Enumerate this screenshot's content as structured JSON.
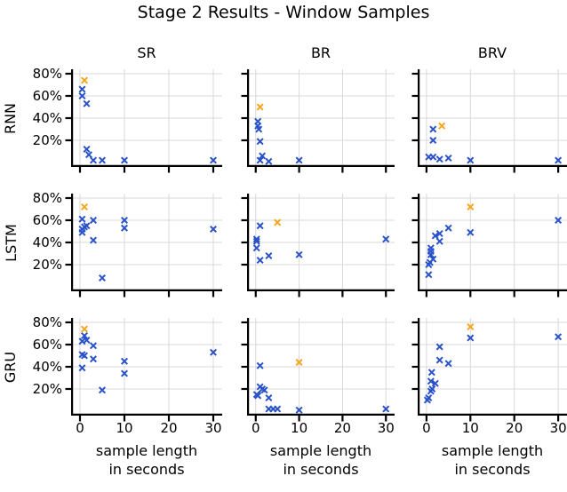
{
  "figure": {
    "title": "Stage 2 Results - Window Samples",
    "columns": [
      "SR",
      "BR",
      "BRV"
    ],
    "rows": [
      "RNN",
      "LSTM",
      "GRU"
    ],
    "xlabel_lines": [
      "sample length",
      "in seconds"
    ]
  },
  "colors": {
    "blue": "#2a52c8",
    "orange": "#f7a51b",
    "grid": "#d8d8d8",
    "spine": "#000000"
  },
  "axes": {
    "x_ticks": [
      0,
      10,
      20,
      30
    ],
    "x_tick_labels": [
      "0",
      "10",
      "20",
      "30"
    ],
    "y_ticks": [
      80,
      60,
      40,
      20
    ],
    "y_tick_labels": [
      "80%",
      "60%",
      "40%",
      "20%"
    ],
    "xlim": [
      -2,
      32
    ],
    "ylim": [
      -4,
      84
    ],
    "grid": true,
    "x_unit": "seconds",
    "y_unit": "percent"
  },
  "chart_data": [
    {
      "type": "scatter",
      "row": "RNN",
      "col": "SR",
      "series": [
        {
          "name": "blue",
          "color_key": "blue",
          "points": [
            [
              0.5,
              66
            ],
            [
              0.5,
              60
            ],
            [
              1.5,
              53
            ],
            [
              1.5,
              12
            ],
            [
              2,
              7
            ],
            [
              3,
              2
            ],
            [
              5,
              2
            ],
            [
              10,
              2
            ],
            [
              30,
              2
            ]
          ]
        },
        {
          "name": "orange",
          "color_key": "orange",
          "points": [
            [
              1,
              74
            ]
          ]
        }
      ]
    },
    {
      "type": "scatter",
      "row": "RNN",
      "col": "BR",
      "series": [
        {
          "name": "blue",
          "color_key": "blue",
          "points": [
            [
              0.5,
              37
            ],
            [
              0.5,
              33
            ],
            [
              0.7,
              30
            ],
            [
              1,
              19
            ],
            [
              1.5,
              6
            ],
            [
              1,
              2
            ],
            [
              3,
              1
            ],
            [
              10,
              2
            ]
          ]
        },
        {
          "name": "orange",
          "color_key": "orange",
          "points": [
            [
              1,
              50
            ]
          ]
        }
      ]
    },
    {
      "type": "scatter",
      "row": "RNN",
      "col": "BRV",
      "series": [
        {
          "name": "blue",
          "color_key": "blue",
          "points": [
            [
              1.5,
              30
            ],
            [
              1.5,
              20
            ],
            [
              0.5,
              5
            ],
            [
              1.5,
              5
            ],
            [
              3,
              3
            ],
            [
              5,
              4
            ],
            [
              10,
              2
            ],
            [
              30,
              2
            ]
          ]
        },
        {
          "name": "orange",
          "color_key": "orange",
          "points": [
            [
              3.5,
              33
            ]
          ]
        }
      ]
    },
    {
      "type": "scatter",
      "row": "LSTM",
      "col": "SR",
      "series": [
        {
          "name": "blue",
          "color_key": "blue",
          "points": [
            [
              0.5,
              61
            ],
            [
              3,
              60
            ],
            [
              1.5,
              55
            ],
            [
              1,
              54
            ],
            [
              0.5,
              52
            ],
            [
              0.5,
              49
            ],
            [
              3,
              42
            ],
            [
              10,
              60
            ],
            [
              10,
              53
            ],
            [
              30,
              52
            ],
            [
              5,
              8
            ]
          ]
        },
        {
          "name": "orange",
          "color_key": "orange",
          "points": [
            [
              1,
              72
            ]
          ]
        }
      ]
    },
    {
      "type": "scatter",
      "row": "LSTM",
      "col": "BR",
      "series": [
        {
          "name": "blue",
          "color_key": "blue",
          "points": [
            [
              1,
              55
            ],
            [
              0.2,
              43
            ],
            [
              0.2,
              41
            ],
            [
              0.2,
              35
            ],
            [
              1,
              24
            ],
            [
              3,
              28
            ],
            [
              10,
              29
            ],
            [
              30,
              43
            ]
          ]
        },
        {
          "name": "orange",
          "color_key": "orange",
          "points": [
            [
              5,
              58
            ]
          ]
        }
      ]
    },
    {
      "type": "scatter",
      "row": "LSTM",
      "col": "BRV",
      "series": [
        {
          "name": "blue",
          "color_key": "blue",
          "points": [
            [
              30,
              60
            ],
            [
              5,
              53
            ],
            [
              10,
              49
            ],
            [
              3,
              48
            ],
            [
              2,
              46
            ],
            [
              3,
              41
            ],
            [
              1,
              35
            ],
            [
              1,
              32
            ],
            [
              1,
              29
            ],
            [
              1.5,
              25
            ],
            [
              0.8,
              22
            ],
            [
              0.5,
              20
            ],
            [
              0.5,
              11
            ]
          ]
        },
        {
          "name": "orange",
          "color_key": "orange",
          "points": [
            [
              10,
              72
            ]
          ]
        }
      ]
    },
    {
      "type": "scatter",
      "row": "GRU",
      "col": "SR",
      "series": [
        {
          "name": "blue",
          "color_key": "blue",
          "points": [
            [
              1,
              68
            ],
            [
              1.5,
              64
            ],
            [
              0.5,
              63
            ],
            [
              3,
              59
            ],
            [
              0.5,
              51
            ],
            [
              1,
              50
            ],
            [
              3,
              47
            ],
            [
              0.5,
              39
            ],
            [
              10,
              45
            ],
            [
              10,
              34
            ],
            [
              5,
              19
            ],
            [
              30,
              53
            ]
          ]
        },
        {
          "name": "orange",
          "color_key": "orange",
          "points": [
            [
              1,
              74
            ]
          ]
        }
      ]
    },
    {
      "type": "scatter",
      "row": "GRU",
      "col": "BR",
      "series": [
        {
          "name": "blue",
          "color_key": "blue",
          "points": [
            [
              1,
              41
            ],
            [
              1,
              22
            ],
            [
              1.5,
              20
            ],
            [
              2,
              19
            ],
            [
              0.2,
              15
            ],
            [
              0.5,
              14
            ],
            [
              3,
              12
            ],
            [
              3,
              2
            ],
            [
              4,
              2
            ],
            [
              5,
              2
            ],
            [
              10,
              1
            ],
            [
              30,
              2
            ]
          ]
        },
        {
          "name": "orange",
          "color_key": "orange",
          "points": [
            [
              10,
              44
            ]
          ]
        }
      ]
    },
    {
      "type": "scatter",
      "row": "GRU",
      "col": "BRV",
      "series": [
        {
          "name": "blue",
          "color_key": "blue",
          "points": [
            [
              10,
              66
            ],
            [
              30,
              67
            ],
            [
              3,
              58
            ],
            [
              3,
              46
            ],
            [
              5,
              43
            ],
            [
              1.2,
              35
            ],
            [
              1,
              27
            ],
            [
              2,
              25
            ],
            [
              1.3,
              20
            ],
            [
              1,
              18
            ],
            [
              0.5,
              12
            ],
            [
              0.2,
              10
            ]
          ]
        },
        {
          "name": "orange",
          "color_key": "orange",
          "points": [
            [
              10,
              76
            ]
          ]
        }
      ]
    }
  ]
}
